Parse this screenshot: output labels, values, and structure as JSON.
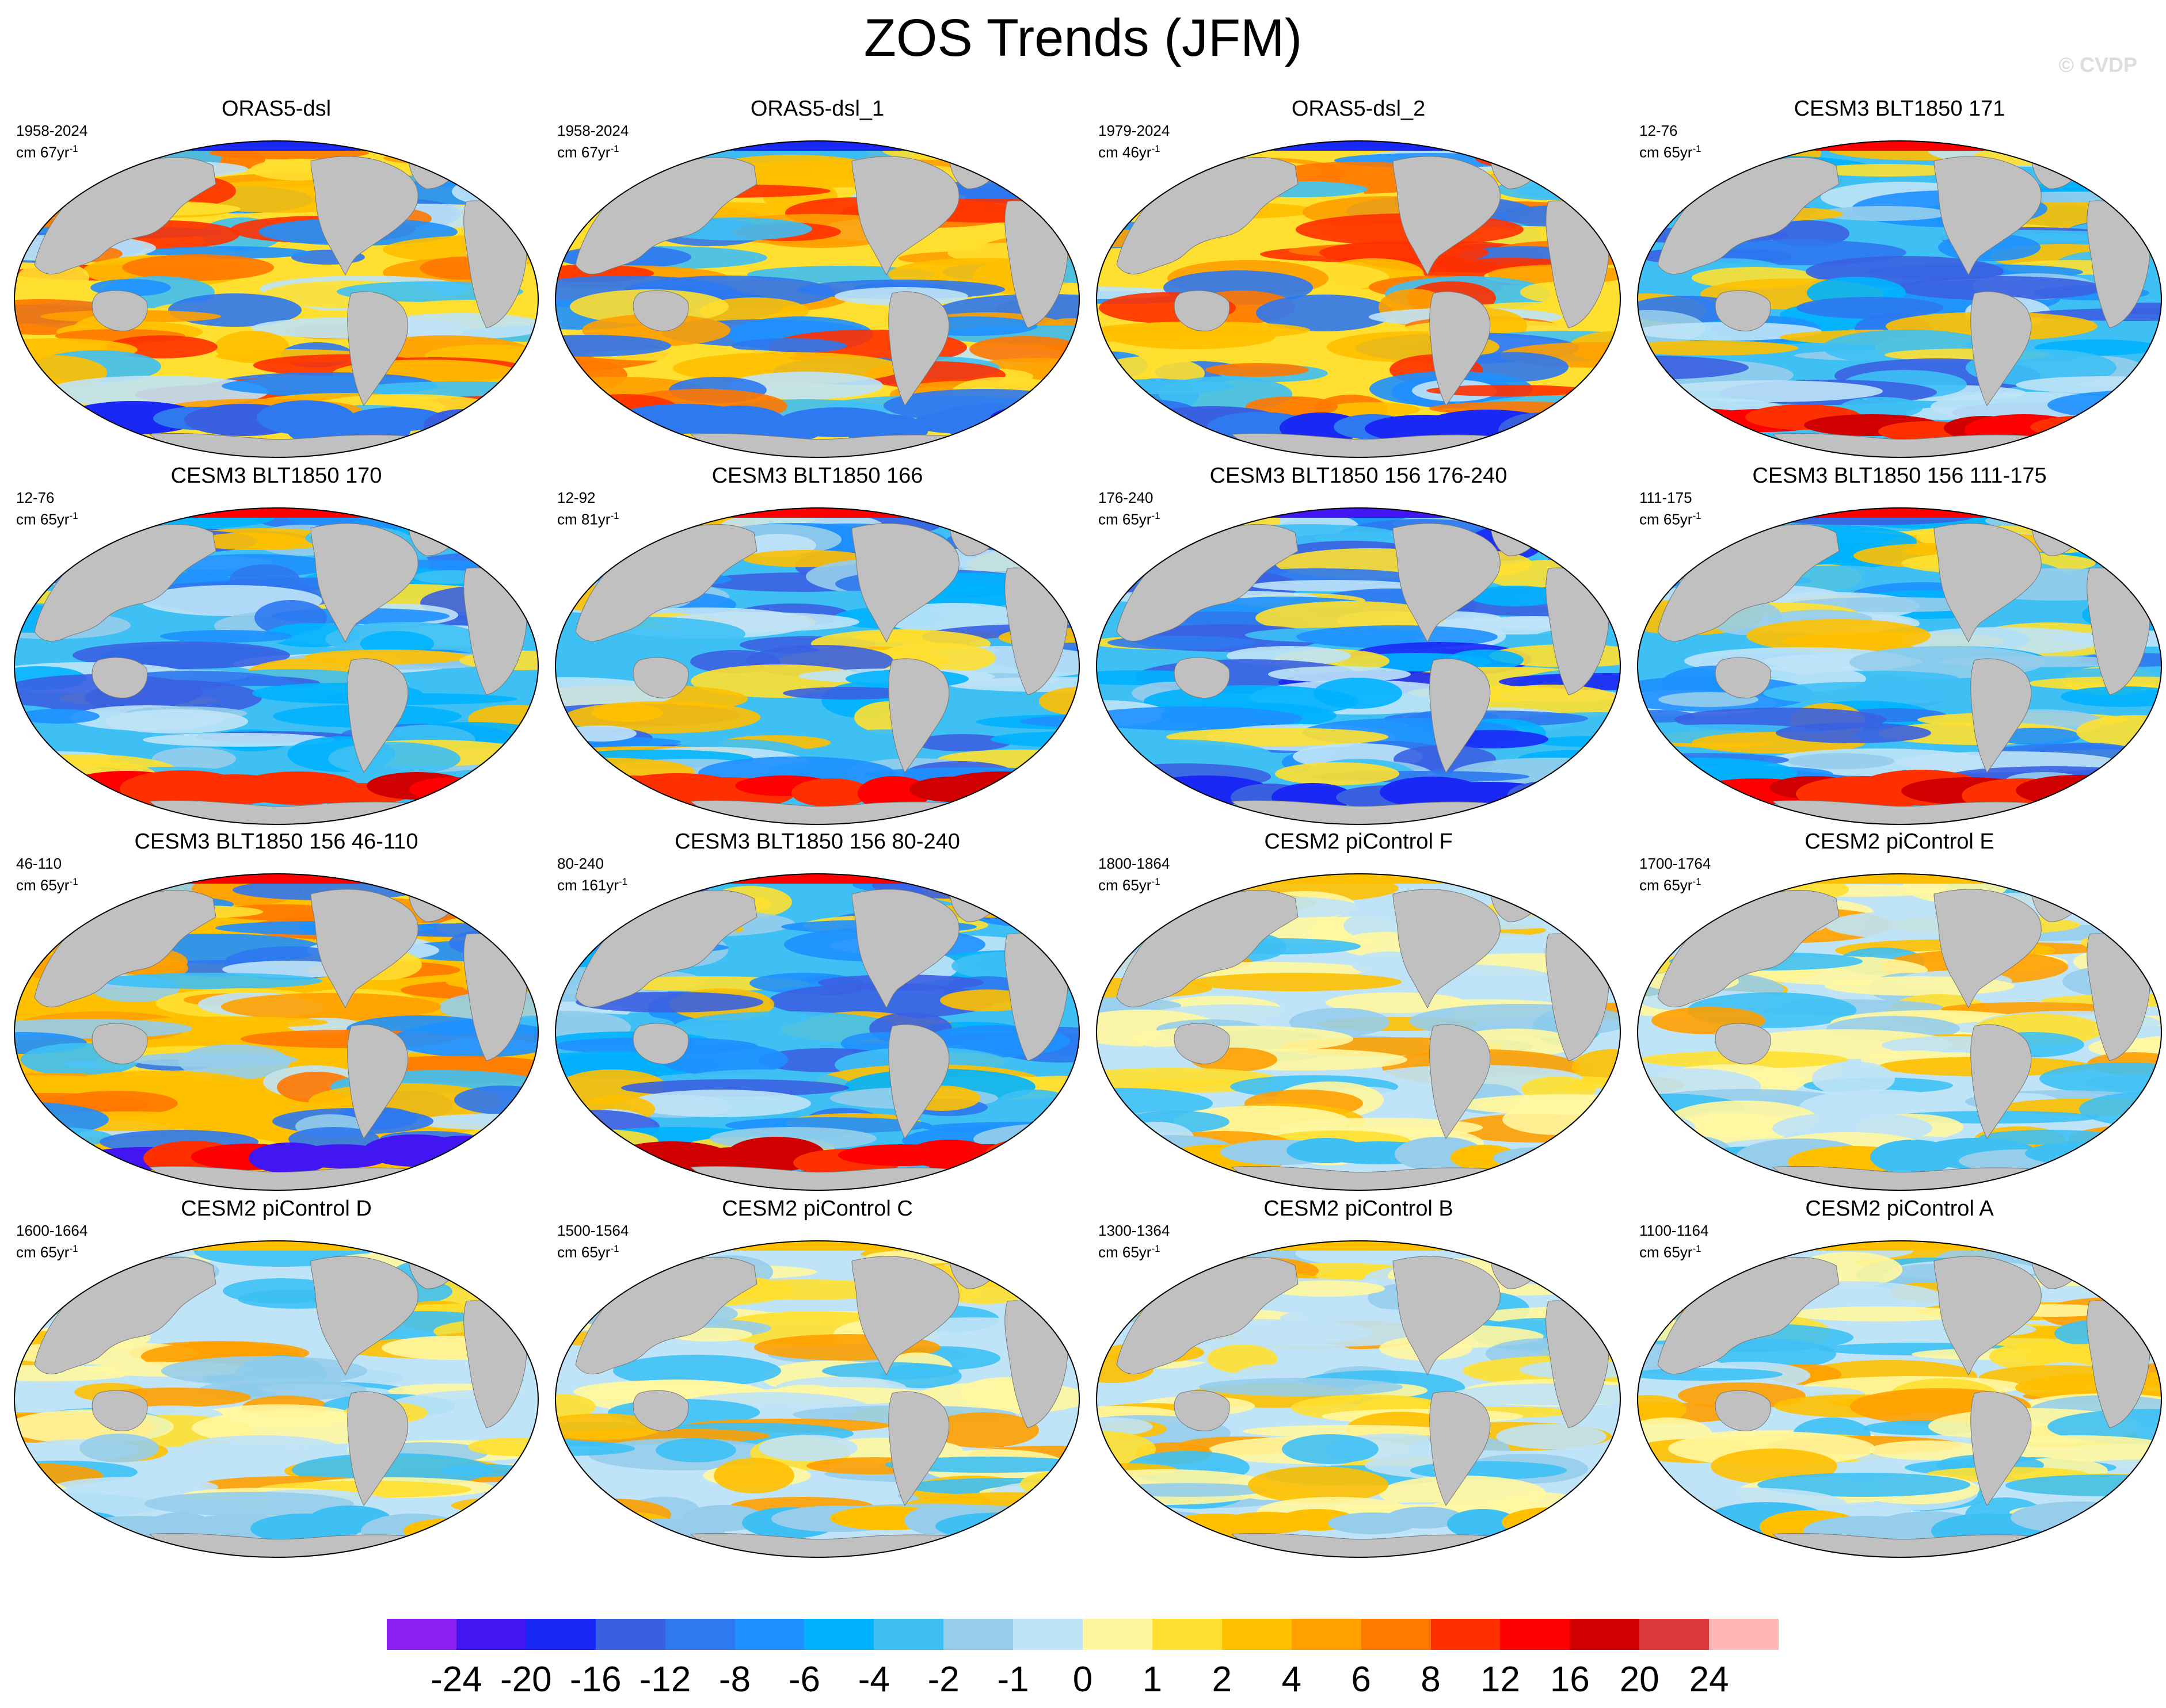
{
  "title": "ZOS Trends (JFM)",
  "watermark": "© CVDP",
  "panels": [
    {
      "title": "ORAS5-dsl",
      "period": "1958-2024",
      "units": "cm 67yr",
      "palette": "mixed"
    },
    {
      "title": "ORAS5-dsl_1",
      "period": "1958-2024",
      "units": "cm 67yr",
      "palette": "mixed"
    },
    {
      "title": "ORAS5-dsl_2",
      "period": "1979-2024",
      "units": "cm 46yr",
      "palette": "mixed"
    },
    {
      "title": "CESM3 BLT1850 171",
      "period": "12-76",
      "units": "cm 65yr",
      "palette": "blue_south_red"
    },
    {
      "title": "CESM3 BLT1850 170",
      "period": "12-76",
      "units": "cm 65yr",
      "palette": "blue_south_red"
    },
    {
      "title": "CESM3 BLT1850 166",
      "period": "12-92",
      "units": "cm 81yr",
      "palette": "blue_south_red"
    },
    {
      "title": "CESM3 BLT1850 156 176-240",
      "period": "176-240",
      "units": "cm 65yr",
      "palette": "blue_deep"
    },
    {
      "title": "CESM3 BLT1850 156 111-175",
      "period": "111-175",
      "units": "cm 65yr",
      "palette": "blue_south_red"
    },
    {
      "title": "CESM3 BLT1850 156 46-110",
      "period": "46-110",
      "units": "cm 65yr",
      "palette": "mixed_south_red"
    },
    {
      "title": "CESM3 BLT1850 156 80-240",
      "period": "80-240",
      "units": "cm 161yr",
      "palette": "blue_south_red"
    },
    {
      "title": "CESM2 piControl F",
      "period": "1800-1864",
      "units": "cm 65yr",
      "palette": "pale"
    },
    {
      "title": "CESM2 piControl E",
      "period": "1700-1764",
      "units": "cm 65yr",
      "palette": "pale"
    },
    {
      "title": "CESM2 piControl D",
      "period": "1600-1664",
      "units": "cm 65yr",
      "palette": "pale"
    },
    {
      "title": "CESM2 piControl C",
      "period": "1500-1564",
      "units": "cm 65yr",
      "palette": "pale"
    },
    {
      "title": "CESM2 piControl B",
      "period": "1300-1364",
      "units": "cm 65yr",
      "palette": "pale"
    },
    {
      "title": "CESM2 piControl A",
      "period": "1100-1164",
      "units": "cm 65yr",
      "palette": "pale"
    }
  ],
  "colorbar": {
    "colors": [
      "#8a1ff0",
      "#4216f2",
      "#1a28f5",
      "#3a60e2",
      "#2e78f0",
      "#1e90ff",
      "#00b2ff",
      "#3ec0f5",
      "#96cdeb",
      "#bfe3f7",
      "#fff7a0",
      "#ffe030",
      "#ffc000",
      "#ffa000",
      "#ff7800",
      "#ff3000",
      "#ff0000",
      "#d00000",
      "#dc3a3a",
      "#ffb6b6"
    ],
    "labels": [
      "-24",
      "-20",
      "-16",
      "-12",
      "-8",
      "-6",
      "-4",
      "-2",
      "-1",
      "0",
      "1",
      "2",
      "4",
      "6",
      "8",
      "12",
      "16",
      "20",
      "24"
    ]
  }
}
